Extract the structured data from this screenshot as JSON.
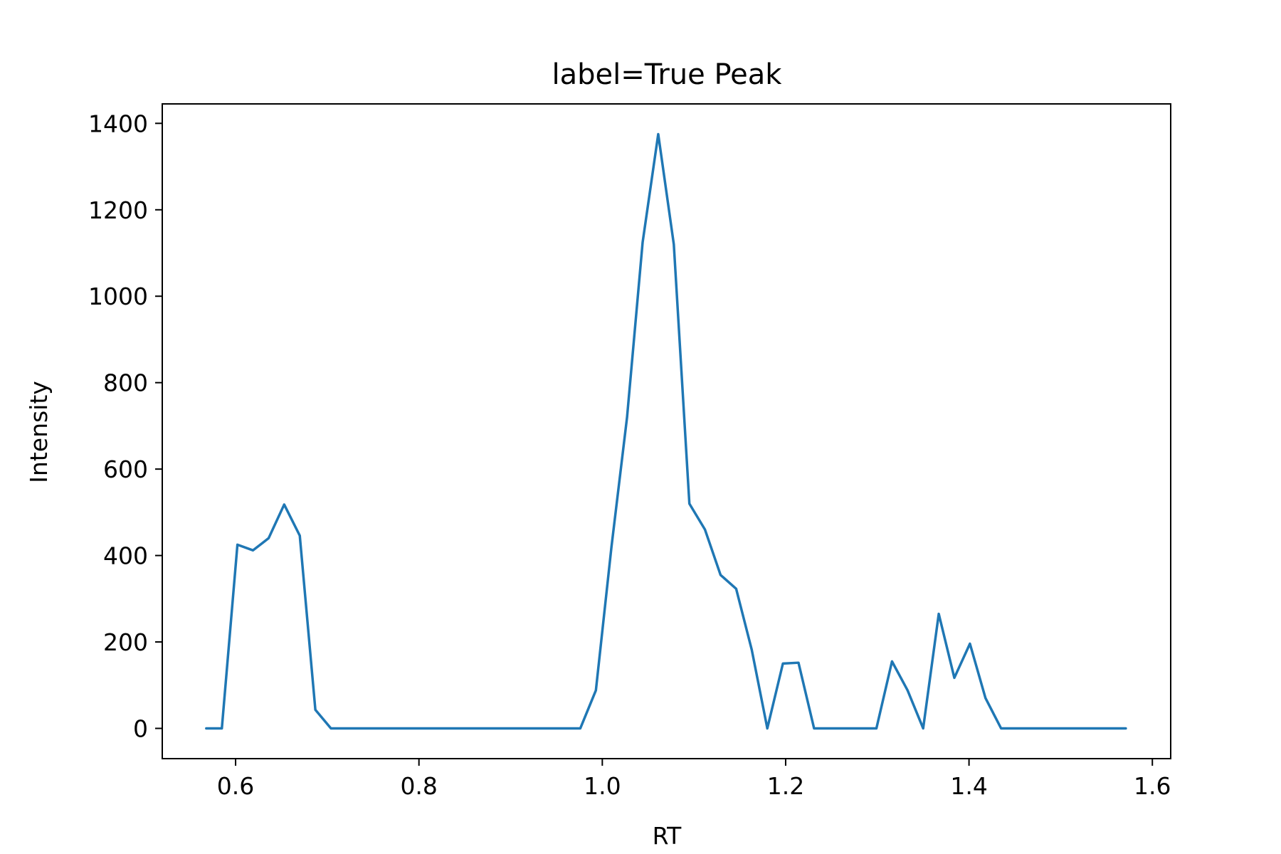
{
  "chart_data": {
    "type": "line",
    "title": "label=True Peak",
    "xlabel": "RT",
    "ylabel": "Intensity",
    "xlim": [
      0.52,
      1.62
    ],
    "ylim": [
      -70,
      1445
    ],
    "xticks": [
      0.6,
      0.8,
      1.0,
      1.2,
      1.4,
      1.6
    ],
    "xtick_labels": [
      "0.6",
      "0.8",
      "1.0",
      "1.2",
      "1.4",
      "1.6"
    ],
    "yticks": [
      0,
      200,
      400,
      600,
      800,
      1000,
      1200,
      1400
    ],
    "ytick_labels": [
      "0",
      "200",
      "400",
      "600",
      "800",
      "1000",
      "1200",
      "1400"
    ],
    "grid": false,
    "line_color": "#1f77b4",
    "series": [
      {
        "x": [
          0.568,
          0.585,
          0.602,
          0.619,
          0.636,
          0.653,
          0.67,
          0.687,
          0.704,
          0.721,
          0.738,
          0.755,
          0.772,
          0.789,
          0.806,
          0.823,
          0.84,
          0.857,
          0.874,
          0.891,
          0.908,
          0.925,
          0.942,
          0.959,
          0.976,
          0.993,
          1.01,
          1.027,
          1.044,
          1.061,
          1.078,
          1.095,
          1.112,
          1.129,
          1.146,
          1.163,
          1.18,
          1.197,
          1.214,
          1.231,
          1.248,
          1.265,
          1.282,
          1.299,
          1.316,
          1.333,
          1.35,
          1.367,
          1.384,
          1.401,
          1.418,
          1.435,
          1.452,
          1.469,
          1.486,
          1.503,
          1.52,
          1.537,
          1.554,
          1.571
        ],
        "values": [
          0,
          0,
          425,
          412,
          440,
          518,
          446,
          43,
          0,
          0,
          0,
          0,
          0,
          0,
          0,
          0,
          0,
          0,
          0,
          0,
          0,
          0,
          0,
          0,
          0,
          88,
          420,
          720,
          1125,
          1375,
          1120,
          520,
          460,
          355,
          323,
          182,
          0,
          150,
          152,
          0,
          0,
          0,
          0,
          0,
          155,
          88,
          0,
          265,
          117,
          196,
          70,
          0,
          0,
          0,
          0,
          0,
          0,
          0,
          0,
          0
        ]
      }
    ]
  }
}
